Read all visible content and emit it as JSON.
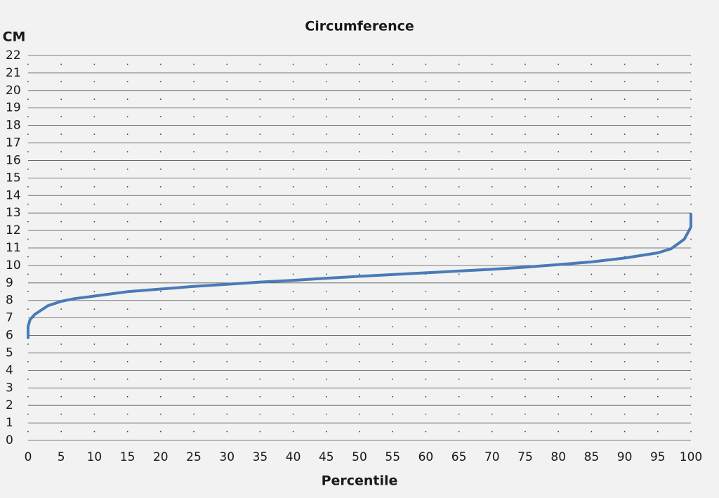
{
  "chart_data": {
    "type": "line",
    "title": "Circumference",
    "x_label": "Percentile",
    "y_label": "CM",
    "x": [
      0,
      0,
      0.3,
      1,
      3,
      5,
      7,
      10,
      15,
      20,
      25,
      30,
      35,
      40,
      45,
      50,
      55,
      60,
      65,
      70,
      75,
      80,
      85,
      90,
      95,
      97,
      99,
      100,
      100
    ],
    "values": [
      5.8,
      6.5,
      6.9,
      7.2,
      7.7,
      7.95,
      8.1,
      8.25,
      8.5,
      8.65,
      8.8,
      8.92,
      9.05,
      9.15,
      9.27,
      9.38,
      9.48,
      9.58,
      9.68,
      9.78,
      9.9,
      10.05,
      10.2,
      10.42,
      10.72,
      10.95,
      11.5,
      12.2,
      13
    ],
    "color": "#4a7ab8",
    "xlim": [
      0,
      100
    ],
    "xticks": [
      0,
      5,
      10,
      15,
      20,
      25,
      30,
      35,
      40,
      45,
      50,
      55,
      60,
      65,
      70,
      75,
      80,
      85,
      90,
      95,
      100
    ],
    "ylim": [
      0,
      22
    ],
    "yticks": [
      0,
      1,
      2,
      3,
      4,
      5,
      6,
      7,
      8,
      9,
      10,
      11,
      12,
      13,
      14,
      15,
      16,
      17,
      18,
      19,
      20,
      21,
      22
    ],
    "grid": true
  }
}
